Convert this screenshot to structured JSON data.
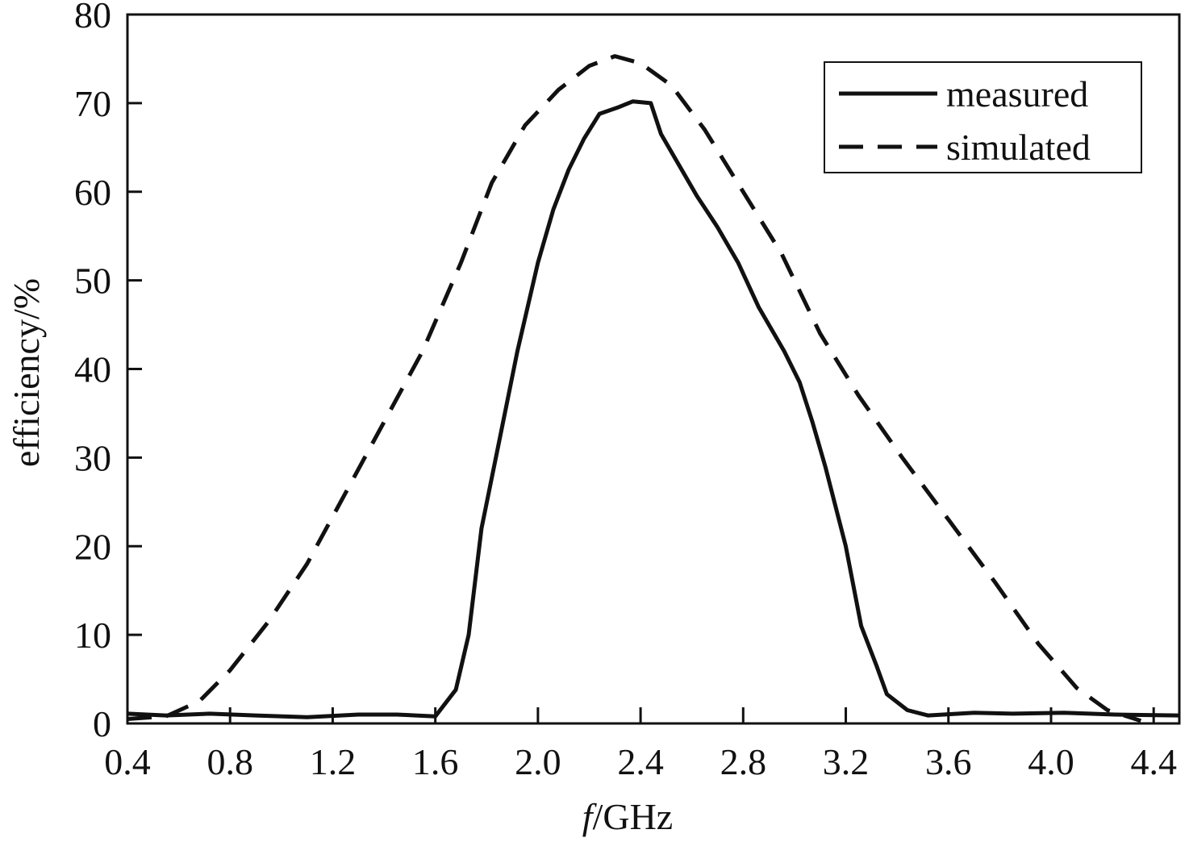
{
  "chart_data": {
    "type": "line",
    "title": "",
    "xlabel_italic": "f",
    "xlabel_rest": "/GHz",
    "ylabel": "efficiency/%",
    "xlim": [
      0.4,
      4.5
    ],
    "ylim": [
      0,
      80
    ],
    "x_ticks": [
      "0.4",
      "0.8",
      "1.2",
      "1.6",
      "2.0",
      "2.4",
      "2.8",
      "3.2",
      "3.6",
      "4.0",
      "4.4"
    ],
    "y_ticks": [
      "0",
      "10",
      "20",
      "30",
      "40",
      "50",
      "60",
      "70",
      "80"
    ],
    "grid": false,
    "legend_position": "top-right",
    "series": [
      {
        "name": "measured",
        "style": "solid",
        "color": "#111111",
        "points": [
          [
            0.4,
            1.1
          ],
          [
            0.55,
            0.9
          ],
          [
            0.72,
            1.1
          ],
          [
            0.9,
            0.9
          ],
          [
            1.1,
            0.7
          ],
          [
            1.3,
            1.0
          ],
          [
            1.45,
            1.0
          ],
          [
            1.6,
            0.8
          ],
          [
            1.68,
            3.8
          ],
          [
            1.73,
            10.0
          ],
          [
            1.78,
            22.0
          ],
          [
            1.85,
            32.0
          ],
          [
            1.92,
            42.0
          ],
          [
            2.0,
            52.0
          ],
          [
            2.06,
            58.0
          ],
          [
            2.12,
            62.5
          ],
          [
            2.18,
            66.0
          ],
          [
            2.24,
            68.8
          ],
          [
            2.31,
            69.5
          ],
          [
            2.37,
            70.2
          ],
          [
            2.44,
            70.0
          ],
          [
            2.48,
            66.5
          ],
          [
            2.55,
            63.0
          ],
          [
            2.62,
            59.5
          ],
          [
            2.7,
            56.0
          ],
          [
            2.78,
            52.0
          ],
          [
            2.86,
            47.0
          ],
          [
            2.96,
            42.0
          ],
          [
            3.02,
            38.5
          ],
          [
            3.07,
            34.0
          ],
          [
            3.12,
            29.0
          ],
          [
            3.2,
            20.0
          ],
          [
            3.26,
            11.0
          ],
          [
            3.32,
            6.5
          ],
          [
            3.36,
            3.3
          ],
          [
            3.44,
            1.5
          ],
          [
            3.52,
            0.9
          ],
          [
            3.7,
            1.2
          ],
          [
            3.85,
            1.1
          ],
          [
            4.05,
            1.2
          ],
          [
            4.25,
            1.0
          ],
          [
            4.5,
            0.9
          ]
        ]
      },
      {
        "name": "simulated",
        "style": "dashed",
        "color": "#111111",
        "points": [
          [
            0.4,
            0.5
          ],
          [
            0.55,
            0.8
          ],
          [
            0.68,
            2.5
          ],
          [
            0.8,
            6.0
          ],
          [
            0.95,
            11.5
          ],
          [
            1.1,
            18.0
          ],
          [
            1.25,
            26.0
          ],
          [
            1.4,
            34.0
          ],
          [
            1.55,
            42.0
          ],
          [
            1.7,
            52.0
          ],
          [
            1.82,
            61.0
          ],
          [
            1.95,
            67.5
          ],
          [
            2.08,
            71.5
          ],
          [
            2.2,
            74.2
          ],
          [
            2.3,
            75.3
          ],
          [
            2.4,
            74.5
          ],
          [
            2.52,
            72.0
          ],
          [
            2.65,
            67.0
          ],
          [
            2.8,
            60.0
          ],
          [
            2.95,
            53.0
          ],
          [
            3.1,
            44.0
          ],
          [
            3.25,
            37.0
          ],
          [
            3.42,
            30.0
          ],
          [
            3.6,
            23.0
          ],
          [
            3.78,
            16.0
          ],
          [
            3.95,
            9.0
          ],
          [
            4.1,
            4.0
          ],
          [
            4.22,
            1.5
          ],
          [
            4.35,
            0.3
          ]
        ]
      }
    ]
  }
}
